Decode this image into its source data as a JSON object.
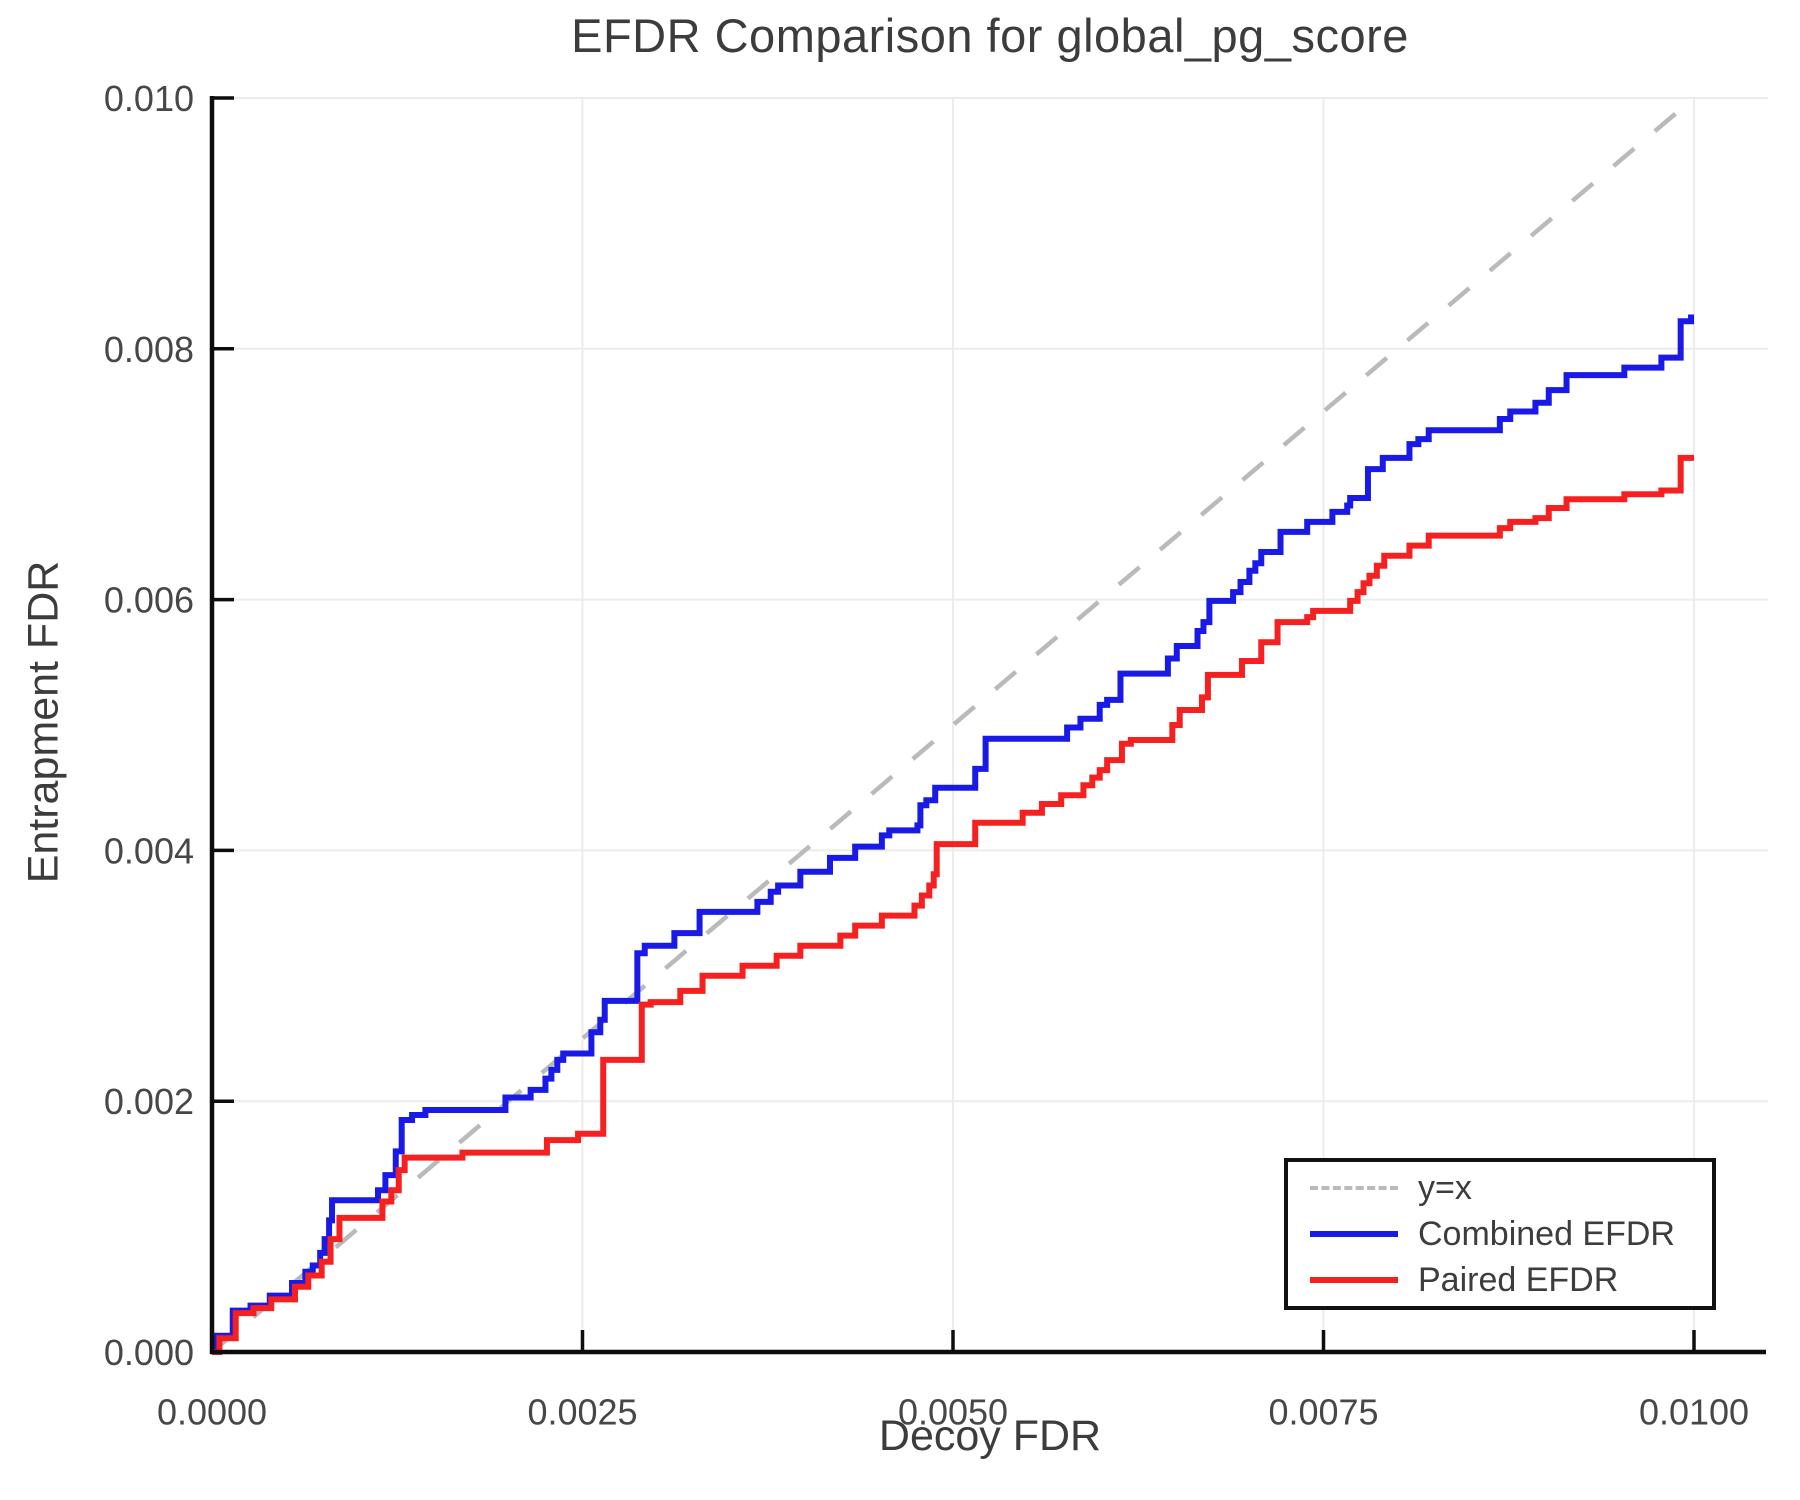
{
  "title": "EFDR Comparison for global_pg_score",
  "axes": {
    "x_label": "Decoy FDR",
    "y_label": "Entrapment FDR"
  },
  "legend": {
    "position": "lower right",
    "items": [
      {
        "label": "y=x",
        "color": "#bababa",
        "dashed": true
      },
      {
        "label": "Combined EFDR",
        "color": "#1a1ae6",
        "dashed": false
      },
      {
        "label": "Paired EFDR",
        "color": "#f52020",
        "dashed": false
      }
    ]
  },
  "colors": {
    "grid": "#ececec",
    "spine": "#0d0d0d",
    "tick_text": "#474747",
    "reference": "#bababa",
    "combined": "#1a1ae6",
    "paired": "#f52020"
  },
  "chart_data": {
    "type": "line",
    "title": "EFDR Comparison for global_pg_score",
    "xlabel": "Decoy FDR",
    "ylabel": "Entrapment FDR",
    "xlim": [
      0.0,
      0.01
    ],
    "ylim": [
      0.0,
      0.01
    ],
    "grid": true,
    "legend_position": "lower right",
    "x_tick_values": [
      0.0,
      0.0025,
      0.005,
      0.0075,
      0.01
    ],
    "x_tick_labels": [
      "0.0000",
      "0.0025",
      "0.0050",
      "0.0075",
      "0.0100"
    ],
    "y_tick_values": [
      0.0,
      0.002,
      0.004,
      0.006,
      0.008,
      0.01
    ],
    "y_tick_labels": [
      "0.000",
      "0.002",
      "0.004",
      "0.006",
      "0.008",
      "0.010"
    ],
    "reference_line": {
      "name": "y=x",
      "from": [
        0.0,
        0.0
      ],
      "to": [
        0.01,
        0.01
      ],
      "style": "dashed",
      "color": "#bababa"
    },
    "series": [
      {
        "name": "Combined EFDR",
        "color": "#1a1ae6",
        "step": true,
        "points": [
          [
            0.0,
            0.0
          ],
          [
            3e-05,
            0.00013
          ],
          [
            0.00014,
            0.00033
          ],
          [
            0.00026,
            0.00037
          ],
          [
            0.00039,
            0.00045
          ],
          [
            0.00054,
            0.00055
          ],
          [
            0.00063,
            0.00064
          ],
          [
            0.00068,
            0.00069
          ],
          [
            0.00073,
            0.00079
          ],
          [
            0.00076,
            0.0009
          ],
          [
            0.00079,
            0.00105
          ],
          [
            0.00081,
            0.00121
          ],
          [
            0.00112,
            0.00129
          ],
          [
            0.00117,
            0.00141
          ],
          [
            0.00124,
            0.0016
          ],
          [
            0.00128,
            0.00185
          ],
          [
            0.00135,
            0.00189
          ],
          [
            0.00144,
            0.00193
          ],
          [
            0.00198,
            0.00203
          ],
          [
            0.00215,
            0.00209
          ],
          [
            0.00225,
            0.00218
          ],
          [
            0.00229,
            0.00225
          ],
          [
            0.00233,
            0.00233
          ],
          [
            0.00237,
            0.00238
          ],
          [
            0.00256,
            0.00255
          ],
          [
            0.00262,
            0.00265
          ],
          [
            0.00265,
            0.0028
          ],
          [
            0.00287,
            0.00318
          ],
          [
            0.00292,
            0.00324
          ],
          [
            0.00312,
            0.00334
          ],
          [
            0.00329,
            0.00351
          ],
          [
            0.00368,
            0.00359
          ],
          [
            0.00377,
            0.00367
          ],
          [
            0.00382,
            0.00372
          ],
          [
            0.00397,
            0.00383
          ],
          [
            0.00417,
            0.00394
          ],
          [
            0.00434,
            0.00403
          ],
          [
            0.00452,
            0.00412
          ],
          [
            0.00457,
            0.00416
          ],
          [
            0.00476,
            0.0042
          ],
          [
            0.00478,
            0.00436
          ],
          [
            0.00482,
            0.0044
          ],
          [
            0.00488,
            0.0045
          ],
          [
            0.00515,
            0.00465
          ],
          [
            0.00522,
            0.00489
          ],
          [
            0.00577,
            0.00498
          ],
          [
            0.00586,
            0.00505
          ],
          [
            0.00599,
            0.00516
          ],
          [
            0.00604,
            0.0052
          ],
          [
            0.00613,
            0.00541
          ],
          [
            0.00645,
            0.00553
          ],
          [
            0.00651,
            0.00563
          ],
          [
            0.00665,
            0.00575
          ],
          [
            0.00669,
            0.00582
          ],
          [
            0.00673,
            0.00599
          ],
          [
            0.00689,
            0.00606
          ],
          [
            0.00694,
            0.00614
          ],
          [
            0.007,
            0.00623
          ],
          [
            0.00704,
            0.00629
          ],
          [
            0.00708,
            0.00638
          ],
          [
            0.00721,
            0.00654
          ],
          [
            0.00739,
            0.00662
          ],
          [
            0.00756,
            0.0067
          ],
          [
            0.00766,
            0.00675
          ],
          [
            0.00768,
            0.00681
          ],
          [
            0.0078,
            0.00704
          ],
          [
            0.0079,
            0.00713
          ],
          [
            0.00808,
            0.00724
          ],
          [
            0.00814,
            0.00728
          ],
          [
            0.00821,
            0.00735
          ],
          [
            0.00869,
            0.00744
          ],
          [
            0.00876,
            0.0075
          ],
          [
            0.00893,
            0.00757
          ],
          [
            0.00902,
            0.00767
          ],
          [
            0.00914,
            0.00779
          ],
          [
            0.00953,
            0.00785
          ],
          [
            0.00978,
            0.00793
          ],
          [
            0.00991,
            0.00822
          ],
          [
            0.00998,
            0.00825
          ],
          [
            0.01,
            0.00825
          ]
        ]
      },
      {
        "name": "Paired EFDR",
        "color": "#f52020",
        "step": true,
        "points": [
          [
            0.0,
            0.0
          ],
          [
            5e-05,
            0.00011
          ],
          [
            0.00016,
            0.00031
          ],
          [
            0.00028,
            0.00035
          ],
          [
            0.0004,
            0.00042
          ],
          [
            0.00056,
            0.00052
          ],
          [
            0.00065,
            0.00061
          ],
          [
            0.00074,
            0.00072
          ],
          [
            0.0008,
            0.0009
          ],
          [
            0.00086,
            0.00107
          ],
          [
            0.00115,
            0.0012
          ],
          [
            0.00121,
            0.00129
          ],
          [
            0.00126,
            0.00145
          ],
          [
            0.0013,
            0.00155
          ],
          [
            0.00169,
            0.00159
          ],
          [
            0.00226,
            0.00169
          ],
          [
            0.00247,
            0.00174
          ],
          [
            0.00264,
            0.00233
          ],
          [
            0.0029,
            0.00277
          ],
          [
            0.00296,
            0.00279
          ],
          [
            0.00316,
            0.00288
          ],
          [
            0.00331,
            0.003
          ],
          [
            0.00358,
            0.00308
          ],
          [
            0.00381,
            0.00316
          ],
          [
            0.00397,
            0.00324
          ],
          [
            0.00424,
            0.00332
          ],
          [
            0.00434,
            0.0034
          ],
          [
            0.00452,
            0.00348
          ],
          [
            0.00474,
            0.00356
          ],
          [
            0.00479,
            0.00364
          ],
          [
            0.00484,
            0.00372
          ],
          [
            0.00487,
            0.00381
          ],
          [
            0.00489,
            0.00405
          ],
          [
            0.00515,
            0.00422
          ],
          [
            0.00547,
            0.0043
          ],
          [
            0.0056,
            0.00437
          ],
          [
            0.00573,
            0.00444
          ],
          [
            0.00588,
            0.00452
          ],
          [
            0.00594,
            0.00458
          ],
          [
            0.00599,
            0.00464
          ],
          [
            0.00604,
            0.00472
          ],
          [
            0.00614,
            0.00485
          ],
          [
            0.0062,
            0.00488
          ],
          [
            0.00648,
            0.005
          ],
          [
            0.00653,
            0.00512
          ],
          [
            0.00668,
            0.00522
          ],
          [
            0.00672,
            0.0054
          ],
          [
            0.00695,
            0.00551
          ],
          [
            0.00708,
            0.00566
          ],
          [
            0.00719,
            0.00582
          ],
          [
            0.00739,
            0.00586
          ],
          [
            0.00743,
            0.00591
          ],
          [
            0.00768,
            0.00599
          ],
          [
            0.00773,
            0.00606
          ],
          [
            0.00777,
            0.00613
          ],
          [
            0.00781,
            0.00619
          ],
          [
            0.00786,
            0.00627
          ],
          [
            0.00791,
            0.00635
          ],
          [
            0.00808,
            0.00643
          ],
          [
            0.00821,
            0.00651
          ],
          [
            0.00869,
            0.00657
          ],
          [
            0.00876,
            0.00662
          ],
          [
            0.00893,
            0.00665
          ],
          [
            0.00902,
            0.00673
          ],
          [
            0.00914,
            0.0068
          ],
          [
            0.00953,
            0.00684
          ],
          [
            0.00978,
            0.00687
          ],
          [
            0.00991,
            0.00713
          ],
          [
            0.01,
            0.00713
          ]
        ]
      }
    ]
  }
}
